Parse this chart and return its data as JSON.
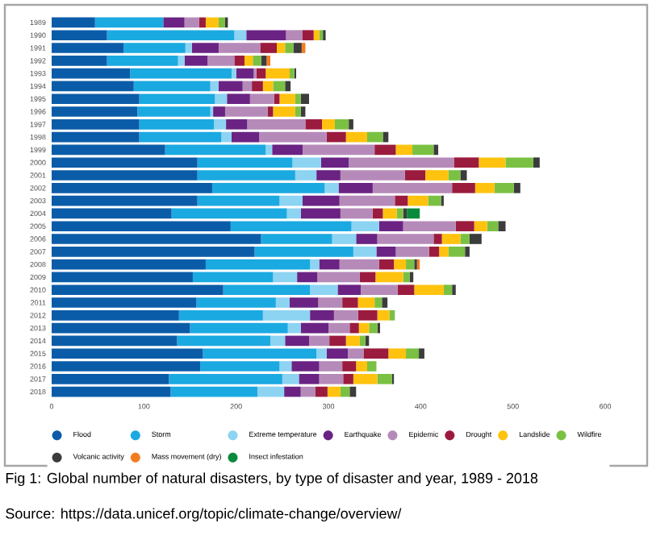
{
  "chart_data": {
    "type": "bar",
    "orientation": "horizontal",
    "stacked": true,
    "categories": [
      "1989",
      "1990",
      "1991",
      "1992",
      "1993",
      "1994",
      "1995",
      "1996",
      "1997",
      "1998",
      "1999",
      "2000",
      "2001",
      "2002",
      "2003",
      "2004",
      "2005",
      "2006",
      "2007",
      "2008",
      "2009",
      "2010",
      "2011",
      "2012",
      "2013",
      "2014",
      "2015",
      "2016",
      "2017",
      "2018"
    ],
    "series": [
      {
        "name": "Flood",
        "color": "#0b5ca8",
        "values": [
          47,
          60,
          78,
          60,
          85,
          89,
          95,
          93,
          95,
          95,
          123,
          158,
          158,
          174,
          158,
          130,
          194,
          227,
          220,
          167,
          153,
          186,
          157,
          138,
          150,
          136,
          164,
          161,
          127,
          129
        ]
      },
      {
        "name": "Storm",
        "color": "#1ba9e1",
        "values": [
          74,
          138,
          67,
          77,
          110,
          83,
          82,
          79,
          81,
          89,
          109,
          103,
          106,
          122,
          89,
          125,
          131,
          77,
          107,
          113,
          87,
          94,
          86,
          91,
          106,
          101,
          123,
          86,
          123,
          94
        ]
      },
      {
        "name": "Extreme temperature",
        "color": "#8dd3f2",
        "values": [
          0,
          13,
          7,
          7,
          5,
          9,
          13,
          3,
          13,
          11,
          7,
          31,
          23,
          15,
          25,
          15,
          30,
          26,
          25,
          10,
          26,
          30,
          15,
          51,
          14,
          16,
          11,
          13,
          18,
          29
        ]
      },
      {
        "name": "Earthquake",
        "color": "#6a2383",
        "values": [
          23,
          43,
          29,
          25,
          19,
          26,
          25,
          13,
          23,
          30,
          33,
          30,
          26,
          37,
          40,
          43,
          26,
          23,
          21,
          22,
          22,
          25,
          31,
          26,
          30,
          26,
          23,
          30,
          22,
          18
        ]
      },
      {
        "name": "Epidemic",
        "color": "#b58ab9",
        "values": [
          16,
          18,
          45,
          29,
          3,
          10,
          26,
          46,
          63,
          73,
          78,
          114,
          70,
          86,
          60,
          35,
          57,
          61,
          36,
          43,
          46,
          40,
          26,
          26,
          23,
          22,
          17,
          25,
          26,
          16
        ]
      },
      {
        "name": "Drought",
        "color": "#9b1b3e",
        "values": [
          7,
          12,
          18,
          11,
          10,
          12,
          6,
          6,
          18,
          21,
          23,
          27,
          22,
          25,
          14,
          11,
          20,
          9,
          11,
          16,
          17,
          18,
          17,
          21,
          10,
          18,
          27,
          15,
          11,
          13
        ]
      },
      {
        "name": "Landslide",
        "color": "#ffc20e",
        "values": [
          14,
          6,
          9,
          9,
          26,
          11,
          17,
          24,
          14,
          23,
          18,
          29,
          25,
          21,
          22,
          15,
          14,
          20,
          10,
          13,
          30,
          32,
          18,
          13,
          11,
          15,
          19,
          12,
          26,
          14
        ]
      },
      {
        "name": "Wildfire",
        "color": "#7ac143",
        "values": [
          7,
          4,
          9,
          9,
          5,
          13,
          6,
          6,
          15,
          17,
          23,
          30,
          13,
          21,
          14,
          7,
          12,
          10,
          18,
          9,
          7,
          9,
          8,
          6,
          9,
          6,
          14,
          10,
          16,
          10
        ]
      },
      {
        "name": "Volcanic activity",
        "color": "#3c3c3c",
        "values": [
          3,
          3,
          9,
          6,
          2,
          6,
          9,
          5,
          5,
          6,
          5,
          7,
          7,
          7,
          3,
          4,
          8,
          13,
          5,
          3,
          4,
          4,
          6,
          0,
          3,
          4,
          6,
          0,
          2,
          7
        ]
      },
      {
        "name": "Mass movement (dry)",
        "color": "#f47c20",
        "values": [
          0,
          0,
          4,
          4,
          0,
          0,
          0,
          0,
          0,
          0,
          0,
          0,
          0,
          0,
          0,
          0,
          0,
          0,
          0,
          3,
          0,
          0,
          0,
          0,
          0,
          0,
          0,
          0,
          0,
          0
        ]
      },
      {
        "name": "Insect infestation",
        "color": "#0a8a3c",
        "values": [
          0,
          0,
          0,
          0,
          0,
          0,
          0,
          0,
          0,
          0,
          0,
          0,
          0,
          0,
          0,
          14,
          0,
          0,
          0,
          0,
          0,
          0,
          0,
          0,
          0,
          0,
          0,
          0,
          0,
          0
        ]
      }
    ],
    "xlim": [
      0,
      600
    ],
    "xticks": [
      0,
      100,
      200,
      300,
      400,
      500,
      600
    ],
    "legend": "bottom",
    "annotations": [
      "Fig 1: Global number of natural disasters, by type of disaster and year, 1989 - 2018",
      "Source: https://data.unicef.org/topic/climate-change/overview/"
    ]
  }
}
